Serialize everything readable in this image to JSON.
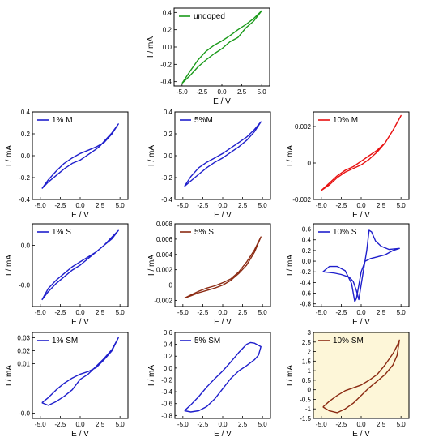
{
  "figure": {
    "background": "#ffffff",
    "axis_color": "#000000"
  },
  "chart_data": [
    {
      "type": "line",
      "panel": "undoped",
      "series_name": "undoped",
      "color": "#1a9a1a",
      "xlabel": "E / V",
      "ylabel": "I / mA",
      "xlim": [
        -6,
        6
      ],
      "ylim": [
        -0.45,
        0.45
      ],
      "xticks": [
        "-5.0",
        "-2.5",
        "0.0",
        "2.5",
        "5.0"
      ],
      "xtick_values": [
        -5,
        -2.5,
        0,
        2.5,
        5
      ],
      "yticks": [
        "-0.4",
        "-0.2",
        "0.0",
        "0.2",
        "0.4"
      ],
      "ytick_values": [
        -0.4,
        -0.2,
        0,
        0.2,
        0.4
      ],
      "x": [
        -5.0,
        -4.0,
        -3.0,
        -2.0,
        -1.0,
        0.0,
        1.0,
        2.0,
        3.0,
        4.0,
        5.0,
        4.0,
        3.0,
        2.0,
        1.0,
        0.0,
        -1.0,
        -2.0,
        -3.0,
        -4.0,
        -5.0
      ],
      "y": [
        -0.42,
        -0.33,
        -0.23,
        -0.15,
        -0.08,
        -0.02,
        0.06,
        0.11,
        0.22,
        0.3,
        0.42,
        0.33,
        0.26,
        0.2,
        0.13,
        0.07,
        0.02,
        -0.05,
        -0.15,
        -0.28,
        -0.42
      ]
    },
    {
      "type": "line",
      "panel": "1% M",
      "series_name": "1% M",
      "color": "#1f1fcc",
      "xlabel": "E / V",
      "ylabel": "I / mA",
      "xlim": [
        -6,
        6
      ],
      "ylim": [
        -0.4,
        0.4
      ],
      "xticks": [
        "-5.0",
        "-2.5",
        "0.0",
        "2.5",
        "5.0"
      ],
      "xtick_values": [
        -5,
        -2.5,
        0,
        2.5,
        5
      ],
      "yticks": [
        "-0.4",
        "-0.2",
        "0.0",
        "0.2",
        "0.4"
      ],
      "ytick_values": [
        -0.4,
        -0.2,
        0,
        0.2,
        0.4
      ],
      "x": [
        -4.8,
        -4.0,
        -3.0,
        -2.0,
        -1.0,
        0.0,
        1.0,
        2.0,
        2.5,
        3.0,
        4.0,
        4.8,
        4.0,
        3.0,
        2.0,
        1.0,
        0.0,
        -1.0,
        -2.0,
        -3.0,
        -4.0,
        -4.8
      ],
      "y": [
        -0.3,
        -0.24,
        -0.18,
        -0.12,
        -0.07,
        -0.04,
        0.01,
        0.06,
        0.09,
        0.13,
        0.21,
        0.29,
        0.2,
        0.12,
        0.08,
        0.05,
        0.02,
        -0.02,
        -0.07,
        -0.14,
        -0.22,
        -0.3
      ]
    },
    {
      "type": "line",
      "panel": "5%M",
      "series_name": "5%M",
      "color": "#1f1fcc",
      "xlabel": "E / V",
      "ylabel": "I / mA",
      "xlim": [
        -6,
        6
      ],
      "ylim": [
        -0.4,
        0.4
      ],
      "xticks": [
        "-5.0",
        "-2.5",
        "0.0",
        "2.5",
        "5.0"
      ],
      "xtick_values": [
        -5,
        -2.5,
        0,
        2.5,
        5
      ],
      "yticks": [
        "-0.4",
        "-0.2",
        "0.0",
        "0.2",
        "0.4"
      ],
      "ytick_values": [
        -0.4,
        -0.2,
        0,
        0.2,
        0.4
      ],
      "x": [
        -4.8,
        -4.0,
        -3.0,
        -2.0,
        -1.0,
        0.0,
        1.0,
        2.0,
        3.0,
        4.0,
        4.8,
        4.0,
        3.0,
        2.0,
        1.0,
        0.0,
        -1.0,
        -2.0,
        -3.0,
        -4.0,
        -4.8
      ],
      "y": [
        -0.28,
        -0.23,
        -0.17,
        -0.11,
        -0.06,
        -0.02,
        0.03,
        0.08,
        0.14,
        0.22,
        0.31,
        0.24,
        0.17,
        0.12,
        0.07,
        0.02,
        -0.02,
        -0.06,
        -0.11,
        -0.19,
        -0.28
      ]
    },
    {
      "type": "line",
      "panel": "10% M",
      "series_name": "10% M",
      "color": "#e81010",
      "xlabel": "E / V",
      "ylabel": "I / mA",
      "xlim": [
        -6,
        6
      ],
      "ylim": [
        -0.002,
        0.0028
      ],
      "xticks": [
        "-5.0",
        "-2.5",
        "0.0",
        "2.5",
        "5.0"
      ],
      "xtick_values": [
        -5,
        -2.5,
        0,
        2.5,
        5
      ],
      "yticks": [
        "-0.002",
        "0",
        "0.002"
      ],
      "ytick_values": [
        -0.002,
        0,
        0.002
      ],
      "x": [
        -5.0,
        -4.0,
        -3.0,
        -2.0,
        -1.0,
        0.0,
        1.0,
        2.0,
        3.0,
        4.0,
        5.0,
        4.0,
        3.0,
        2.0,
        1.0,
        0.0,
        -1.0,
        -2.0,
        -3.0,
        -4.0,
        -5.0
      ],
      "y": [
        -0.0015,
        -0.0012,
        -0.0008,
        -0.0005,
        -0.0003,
        -0.0001,
        0.0002,
        0.0006,
        0.0011,
        0.0018,
        0.0026,
        0.0018,
        0.0011,
        0.0007,
        0.0004,
        0.0001,
        -0.0002,
        -0.0004,
        -0.0007,
        -0.0011,
        -0.0015
      ]
    },
    {
      "type": "line",
      "panel": "1% S",
      "series_name": "1% S",
      "color": "#1f1fcc",
      "xlabel": "E / V",
      "ylabel": "I / mA",
      "xlim": [
        -6,
        6
      ],
      "ylim": [
        -0.025,
        0.025
      ],
      "xticks": [
        "-5.0",
        "-2.5",
        "0.0",
        "2.5",
        "5.0"
      ],
      "xtick_values": [
        -5,
        -2.5,
        0,
        2.5,
        5
      ],
      "yticks": [
        "-0.0",
        "0.0"
      ],
      "ytick_values": [
        -0.012,
        0.012
      ],
      "x": [
        -4.8,
        -4.0,
        -3.0,
        -2.0,
        -1.0,
        0.0,
        1.0,
        2.0,
        3.0,
        4.0,
        4.8,
        4.0,
        3.0,
        2.0,
        1.0,
        0.0,
        -1.0,
        -2.0,
        -3.0,
        -4.0,
        -4.8
      ],
      "y": [
        -0.021,
        -0.016,
        -0.011,
        -0.007,
        -0.003,
        0.0,
        0.004,
        0.008,
        0.012,
        0.016,
        0.021,
        0.017,
        0.012,
        0.008,
        0.005,
        0.002,
        -0.001,
        -0.005,
        -0.009,
        -0.014,
        -0.021
      ]
    },
    {
      "type": "line",
      "panel": "5% S",
      "series_name": "5% S",
      "color": "#8b2a12",
      "xlabel": "E / V",
      "ylabel": "I / mA",
      "xlim": [
        -6,
        6
      ],
      "ylim": [
        -0.0028,
        0.008
      ],
      "xticks": [
        "-5.0",
        "-2.5",
        "0.0",
        "2.5",
        "5.0"
      ],
      "xtick_values": [
        -5,
        -2.5,
        0,
        2.5,
        5
      ],
      "yticks": [
        "-0.002",
        "0",
        "0.002",
        "0.004",
        "0.006",
        "0.008"
      ],
      "ytick_values": [
        -0.002,
        0,
        0.002,
        0.004,
        0.006,
        0.008
      ],
      "x": [
        -4.8,
        -4.0,
        -3.0,
        -2.0,
        -1.0,
        0.0,
        1.0,
        2.0,
        3.0,
        4.0,
        4.8,
        4.0,
        3.0,
        2.0,
        1.0,
        0.0,
        -1.0,
        -2.0,
        -3.0,
        -4.0,
        -4.8
      ],
      "y": [
        -0.0017,
        -0.0014,
        -0.001,
        -0.0007,
        -0.0004,
        0.0,
        0.0006,
        0.0015,
        0.0026,
        0.0043,
        0.0063,
        0.0046,
        0.003,
        0.0017,
        0.0008,
        0.0003,
        -0.0001,
        -0.0004,
        -0.0008,
        -0.0013,
        -0.0017
      ]
    },
    {
      "type": "line",
      "panel": "10% S",
      "series_name": "10% S",
      "color": "#1f1fcc",
      "xlabel": "E / V",
      "ylabel": "I / mA",
      "xlim": [
        -6,
        6
      ],
      "ylim": [
        -0.85,
        0.7
      ],
      "xticks": [
        "-5.0",
        "-2.5",
        "0.0",
        "2.5",
        "5.0"
      ],
      "xtick_values": [
        -5,
        -2.5,
        0,
        2.5,
        5
      ],
      "yticks": [
        "-0.8",
        "-0.6",
        "-0.4",
        "-0.2",
        "0.0",
        "0.2",
        "0.4",
        "0.6"
      ],
      "ytick_values": [
        -0.8,
        -0.6,
        -0.4,
        -0.2,
        0,
        0.2,
        0.4,
        0.6
      ],
      "x": [
        -4.8,
        -3.5,
        -2.5,
        -1.5,
        -1.0,
        -0.6,
        -0.3,
        0.2,
        0.7,
        1.0,
        1.3,
        1.8,
        2.5,
        3.5,
        4.8,
        4.0,
        3.0,
        2.0,
        1.2,
        0.5,
        0.0,
        -0.3,
        -0.6,
        -0.8,
        -1.2,
        -2.0,
        -3.0,
        -4.0,
        -4.8
      ],
      "y": [
        -0.2,
        -0.22,
        -0.25,
        -0.3,
        -0.38,
        -0.55,
        -0.72,
        -0.25,
        0.2,
        0.58,
        0.55,
        0.38,
        0.28,
        0.22,
        0.24,
        0.2,
        0.12,
        0.08,
        0.05,
        0.0,
        -0.2,
        -0.45,
        -0.7,
        -0.76,
        -0.42,
        -0.18,
        -0.1,
        -0.1,
        -0.2
      ]
    },
    {
      "type": "line",
      "panel": "1% SM",
      "series_name": "1% SM",
      "color": "#1f1fcc",
      "xlabel": "E / V",
      "ylabel": "I / mA",
      "xlim": [
        -6,
        6
      ],
      "ylim": [
        -0.032,
        0.034
      ],
      "xticks": [
        "-5.0",
        "-2.5",
        "0.0",
        "2.5",
        "5.0"
      ],
      "xtick_values": [
        -5,
        -2.5,
        0,
        2.5,
        5
      ],
      "yticks": [
        "-0.0",
        "0.01",
        "0.02",
        "0.03"
      ],
      "ytick_values": [
        -0.028,
        0.01,
        0.02,
        0.03
      ],
      "x": [
        -4.8,
        -4.0,
        -3.0,
        -2.0,
        -1.0,
        0.0,
        1.0,
        2.0,
        3.0,
        4.0,
        4.8,
        4.0,
        3.0,
        2.0,
        1.0,
        0.0,
        -1.0,
        -2.0,
        -3.0,
        -4.0,
        -4.8
      ],
      "y": [
        -0.02,
        -0.022,
        -0.019,
        -0.015,
        -0.01,
        -0.002,
        0.002,
        0.008,
        0.014,
        0.021,
        0.03,
        0.02,
        0.013,
        0.007,
        0.004,
        0.002,
        -0.001,
        -0.005,
        -0.01,
        -0.016,
        -0.02
      ]
    },
    {
      "type": "line",
      "panel": "5% SM",
      "series_name": "5% SM",
      "color": "#1f1fcc",
      "xlabel": "E / V",
      "ylabel": "I / mA",
      "xlim": [
        -6,
        6
      ],
      "ylim": [
        -0.85,
        0.6
      ],
      "xticks": [
        "-5.0",
        "-2.5",
        "0.0",
        "2.5",
        "5.0"
      ],
      "xtick_values": [
        -5,
        -2.5,
        0,
        2.5,
        5
      ],
      "yticks": [
        "-0.8",
        "-0.6",
        "-0.4",
        "-0.2",
        "0.0",
        "0.2",
        "0.4",
        "0.6"
      ],
      "ytick_values": [
        -0.8,
        -0.6,
        -0.4,
        -0.2,
        0,
        0.2,
        0.4,
        0.6
      ],
      "x": [
        -4.8,
        -4.0,
        -3.0,
        -2.0,
        -1.0,
        0.0,
        1.0,
        2.0,
        3.0,
        3.5,
        4.0,
        4.8,
        4.5,
        4.0,
        3.0,
        2.0,
        1.0,
        0.0,
        -1.0,
        -2.0,
        -3.0,
        -4.0,
        -4.8
      ],
      "y": [
        -0.72,
        -0.62,
        -0.48,
        -0.32,
        -0.18,
        -0.05,
        0.1,
        0.26,
        0.4,
        0.43,
        0.42,
        0.36,
        0.22,
        0.14,
        0.04,
        -0.05,
        -0.18,
        -0.35,
        -0.52,
        -0.65,
        -0.72,
        -0.74,
        -0.72
      ]
    },
    {
      "type": "line",
      "panel": "10% SM",
      "series_name": "10% SM",
      "color": "#8b2a12",
      "xlabel": "E / V",
      "ylabel": "I / mA",
      "xlim": [
        -6,
        6
      ],
      "ylim": [
        -1.5,
        3.0
      ],
      "xticks": [
        "-5.0",
        "-2.5",
        "0.0",
        "2.5",
        "5.0"
      ],
      "xtick_values": [
        -5,
        -2.5,
        0,
        2.5,
        5
      ],
      "yticks": [
        "-1.5",
        "-1",
        "-0.5",
        "0",
        "0.5",
        "1",
        "1.5",
        "2",
        "2.5",
        "3"
      ],
      "ytick_values": [
        -1.5,
        -1,
        -0.5,
        0,
        0.5,
        1,
        1.5,
        2,
        2.5,
        3
      ],
      "x": [
        -4.8,
        -4.0,
        -3.0,
        -2.0,
        -1.0,
        0.0,
        1.0,
        2.0,
        3.0,
        4.0,
        4.5,
        4.8,
        4.5,
        4.0,
        3.0,
        2.0,
        1.0,
        0.0,
        -1.0,
        -2.0,
        -3.0,
        -4.0,
        -4.8
      ],
      "y": [
        -0.9,
        -0.6,
        -0.3,
        -0.05,
        0.1,
        0.25,
        0.5,
        0.8,
        1.3,
        1.9,
        2.3,
        2.6,
        1.8,
        1.3,
        0.8,
        0.45,
        0.1,
        -0.3,
        -0.7,
        -1.0,
        -1.2,
        -1.1,
        -0.9
      ]
    }
  ]
}
